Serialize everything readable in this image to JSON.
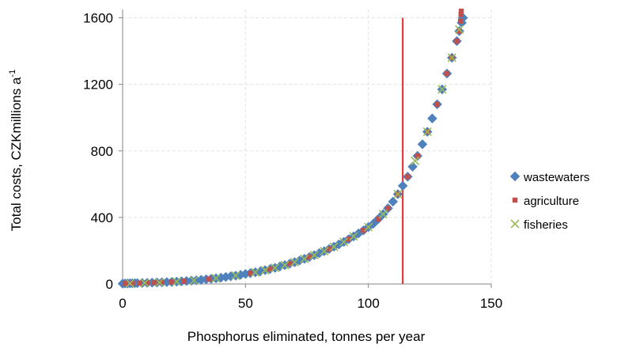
{
  "chart_data": {
    "type": "scatter",
    "title": "",
    "xlabel": "Phosphorus eliminated, tonnes per year",
    "ylabel_main": "Total costs, CZKmillions a",
    "ylabel_sup": "-1",
    "xlim": [
      0,
      150
    ],
    "ylim": [
      0,
      1650
    ],
    "xticks": [
      0,
      50,
      100,
      150
    ],
    "yticks": [
      0,
      400,
      800,
      1200,
      1600
    ],
    "grid": "horizontal and vertical, light dashed",
    "legend_position": "right",
    "reference_line": {
      "x": 114,
      "y_from": 0,
      "y_to": 1600,
      "color": "#e8262b"
    },
    "series": [
      {
        "name": "wastewaters",
        "marker": "diamond",
        "color": "#4f81bd",
        "points": [
          [
            0,
            2
          ],
          [
            1,
            3
          ],
          [
            2,
            3
          ],
          [
            3,
            4
          ],
          [
            4,
            4
          ],
          [
            5,
            5
          ],
          [
            6,
            5
          ],
          [
            8,
            6
          ],
          [
            10,
            7
          ],
          [
            12,
            8
          ],
          [
            14,
            9
          ],
          [
            16,
            10
          ],
          [
            18,
            11
          ],
          [
            20,
            12
          ],
          [
            22,
            14
          ],
          [
            24,
            16
          ],
          [
            26,
            18
          ],
          [
            28,
            20
          ],
          [
            30,
            22
          ],
          [
            32,
            25
          ],
          [
            34,
            28
          ],
          [
            36,
            31
          ],
          [
            38,
            34
          ],
          [
            40,
            38
          ],
          [
            42,
            42
          ],
          [
            44,
            46
          ],
          [
            46,
            50
          ],
          [
            48,
            55
          ],
          [
            50,
            60
          ],
          [
            52,
            65
          ],
          [
            54,
            70
          ],
          [
            56,
            76
          ],
          [
            58,
            83
          ],
          [
            60,
            90
          ],
          [
            62,
            97
          ],
          [
            64,
            105
          ],
          [
            66,
            113
          ],
          [
            68,
            122
          ],
          [
            70,
            131
          ],
          [
            72,
            141
          ],
          [
            74,
            151
          ],
          [
            76,
            162
          ],
          [
            78,
            173
          ],
          [
            80,
            185
          ],
          [
            82,
            197
          ],
          [
            84,
            210
          ],
          [
            86,
            224
          ],
          [
            88,
            238
          ],
          [
            90,
            253
          ],
          [
            92,
            269
          ],
          [
            94,
            286
          ],
          [
            96,
            304
          ],
          [
            98,
            322
          ],
          [
            100,
            342
          ],
          [
            102,
            362
          ],
          [
            104,
            390
          ],
          [
            106,
            420
          ],
          [
            108,
            455
          ],
          [
            110,
            495
          ],
          [
            112,
            540
          ],
          [
            114,
            590
          ],
          [
            116,
            645
          ],
          [
            118,
            705
          ],
          [
            120,
            770
          ],
          [
            122,
            840
          ],
          [
            124,
            915
          ],
          [
            126,
            995
          ],
          [
            128,
            1080
          ],
          [
            130,
            1170
          ],
          [
            132,
            1265
          ],
          [
            134,
            1360
          ],
          [
            136,
            1460
          ],
          [
            137,
            1520
          ],
          [
            138,
            1570
          ],
          [
            138.5,
            1600
          ]
        ]
      },
      {
        "name": "agriculture",
        "marker": "square",
        "color": "#c0504d",
        "points": [
          [
            1,
            3
          ],
          [
            4,
            4
          ],
          [
            7,
            5
          ],
          [
            10,
            7
          ],
          [
            13,
            8
          ],
          [
            16,
            10
          ],
          [
            20,
            12
          ],
          [
            25,
            17
          ],
          [
            35,
            30
          ],
          [
            52,
            64
          ],
          [
            60,
            90
          ],
          [
            68,
            122
          ],
          [
            76,
            162
          ],
          [
            84,
            210
          ],
          [
            92,
            269
          ],
          [
            98,
            322
          ],
          [
            104,
            390
          ],
          [
            108,
            455
          ],
          [
            112,
            540
          ],
          [
            116,
            645
          ],
          [
            120,
            770
          ],
          [
            124,
            915
          ],
          [
            128,
            1080
          ],
          [
            132,
            1265
          ],
          [
            134,
            1360
          ],
          [
            136,
            1460
          ],
          [
            137,
            1520
          ],
          [
            137.5,
            1580
          ],
          [
            137.7,
            1620
          ],
          [
            137.8,
            1640
          ]
        ]
      },
      {
        "name": "fisheries",
        "marker": "x",
        "color": "#9bbb59",
        "points": [
          [
            3,
            4
          ],
          [
            9,
            6
          ],
          [
            15,
            9
          ],
          [
            22,
            14
          ],
          [
            29,
            21
          ],
          [
            38,
            34
          ],
          [
            46,
            50
          ],
          [
            54,
            70
          ],
          [
            58,
            83
          ],
          [
            62,
            97
          ],
          [
            66,
            113
          ],
          [
            70,
            131
          ],
          [
            74,
            151
          ],
          [
            78,
            173
          ],
          [
            82,
            197
          ],
          [
            86,
            224
          ],
          [
            90,
            253
          ],
          [
            94,
            286
          ],
          [
            100,
            342
          ],
          [
            106,
            420
          ],
          [
            112,
            540
          ],
          [
            119,
            740
          ],
          [
            124,
            915
          ],
          [
            130,
            1170
          ],
          [
            134,
            1360
          ],
          [
            137,
            1530
          ]
        ]
      }
    ]
  }
}
